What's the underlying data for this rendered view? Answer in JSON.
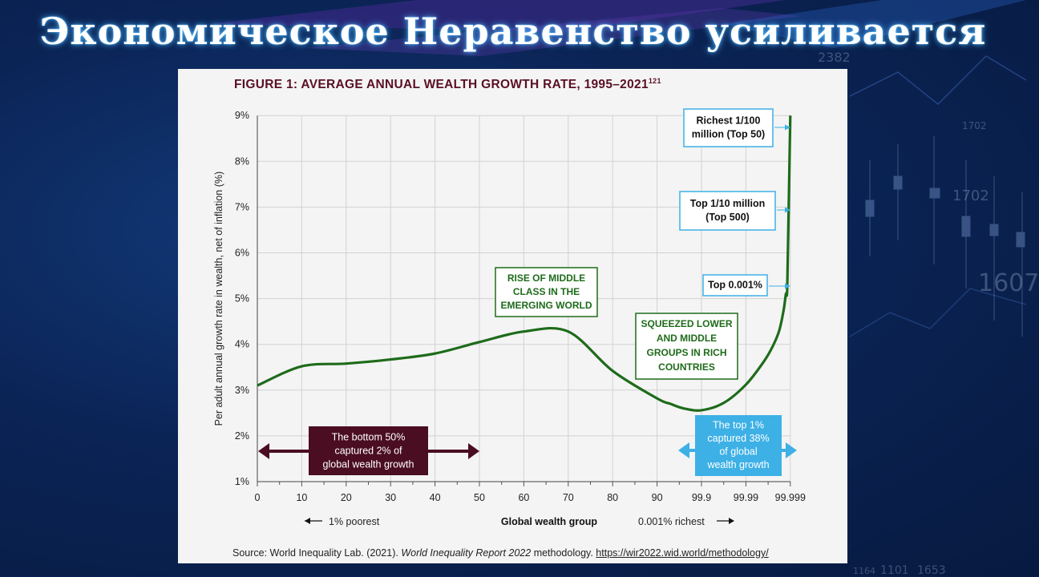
{
  "slide": {
    "title": "Экономическое Неравенство усиливается",
    "decor_numbers": [
      "2382",
      "1702",
      "1702",
      "1607",
      "1101",
      "1653",
      "1164"
    ]
  },
  "figure": {
    "title": "FIGURE 1: AVERAGE ANNUAL WEALTH GROWTH RATE, 1995–2021",
    "title_sup": "121",
    "source_prefix": "Source: World Inequality Lab. (2021). ",
    "source_italic": "World Inequality Report 2022",
    "source_mid": " methodology. ",
    "source_link": "https://wir2022.wid.world/methodology/"
  },
  "chart_data": {
    "type": "line",
    "title": "FIGURE 1: AVERAGE ANNUAL WEALTH GROWTH RATE, 1995–2021",
    "xlabel": "Global wealth group",
    "ylabel": "Per adult annual growth rate in wealth, net of inflation (%)",
    "y_ticks": [
      "1%",
      "2%",
      "3%",
      "4%",
      "5%",
      "6%",
      "7%",
      "8%",
      "9%"
    ],
    "ylim": [
      1,
      9
    ],
    "x_ticks": [
      "0",
      "10",
      "20",
      "30",
      "40",
      "50",
      "60",
      "70",
      "80",
      "90",
      "99.9",
      "99.99",
      "99.999"
    ],
    "grid": true,
    "x_left_note": "1% poorest",
    "x_right_note": "0.001% richest",
    "series": [
      {
        "color": "#1e6b1a",
        "x_index": [
          0,
          1,
          2,
          3,
          4,
          5,
          6,
          7,
          8,
          9,
          9.3,
          9.6,
          10,
          10.5,
          11,
          11.4,
          11.6,
          11.75,
          11.85,
          11.9,
          11.93,
          11.96,
          12
        ],
        "values": [
          3.1,
          3.52,
          3.58,
          3.67,
          3.8,
          4.05,
          4.28,
          4.28,
          3.42,
          2.82,
          2.7,
          2.6,
          2.56,
          2.72,
          3.12,
          3.62,
          3.95,
          4.3,
          4.75,
          5.1,
          5.2,
          6.8,
          9.0
        ]
      }
    ],
    "annotations": {
      "rise": "RISE OF MIDDLE\nCLASS IN THE\nEMERGING WORLD",
      "squeezed": "SQUEEZED LOWER\nAND MIDDLE\nGROUPS IN RICH\nCOUNTRIES",
      "bottom50": "The bottom 50%\ncaptured 2% of\nglobal wealth growth",
      "top1": "The top 1%\ncaptured 38%\nof global\nwealth growth",
      "richest": "Richest 1/100\nmillion (Top 50)",
      "top500": "Top 1/10 million\n(Top 500)",
      "top0001": "Top 0.001%"
    },
    "colors": {
      "line": "#1e6b1a",
      "bottom50": "#4a0d22",
      "top1": "#3db0e6",
      "callout_border": "#3db0e6",
      "annotation_border": "#1e6b1a"
    }
  }
}
